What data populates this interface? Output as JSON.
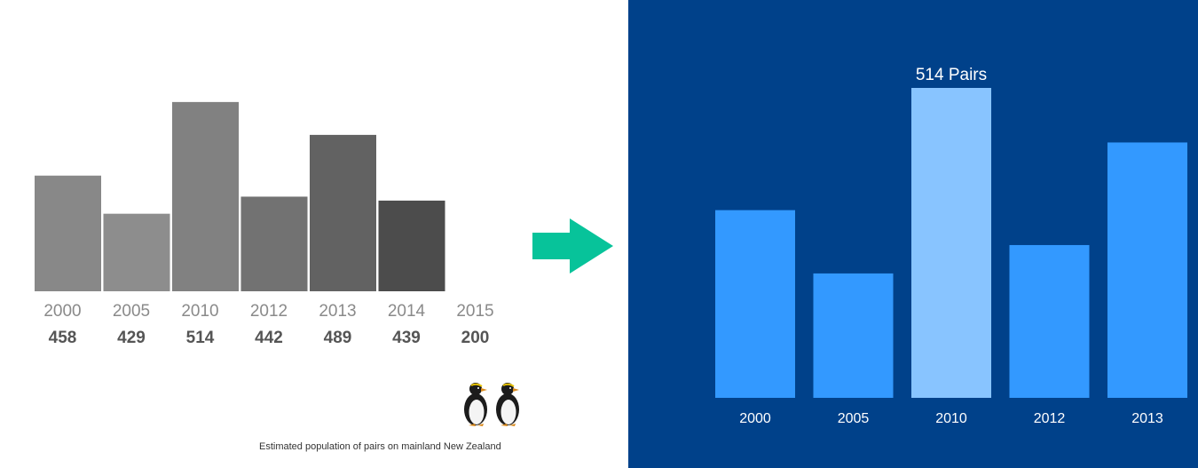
{
  "colors": {
    "left_background": "#ffffff",
    "left_bar_shades": [
      "#888888",
      "#8d8d8d",
      "#818181",
      "#727272",
      "#626262",
      "#4c4c4c",
      "#353535"
    ],
    "left_year_text": "#8a8a8a",
    "left_value_text": "#555555",
    "arrow": "#07c39a",
    "right_background": "#00418a",
    "right_bar": "#3399ff",
    "right_bar_highlight": "#88c4ff",
    "right_text": "#ffffff"
  },
  "icons": {
    "arrow": "right-arrow-icon",
    "penguins": "penguin-icon"
  },
  "caption": "Estimated population of pairs on mainland New Zealand",
  "chart_data": [
    {
      "type": "bar",
      "categories": [
        "2000",
        "2005",
        "2010",
        "2012",
        "2013",
        "2014",
        "2015"
      ],
      "values": [
        458,
        429,
        514,
        442,
        489,
        439,
        200
      ],
      "value_labels": [
        "458",
        "429",
        "514",
        "442",
        "489",
        "439",
        "200"
      ],
      "title": "",
      "xlabel": "",
      "ylabel": "",
      "ylim": [
        370,
        520
      ],
      "grid": false,
      "legend": "none"
    },
    {
      "type": "bar",
      "categories": [
        "2000",
        "2005",
        "2010",
        "2012",
        "2013"
      ],
      "values": [
        458,
        429,
        514,
        442,
        489
      ],
      "highlight_index": 2,
      "highlight_label": "514 Pairs",
      "title": "",
      "xlabel": "",
      "ylabel": "",
      "ylim": [
        372,
        514
      ],
      "grid": false,
      "legend": "none"
    }
  ]
}
